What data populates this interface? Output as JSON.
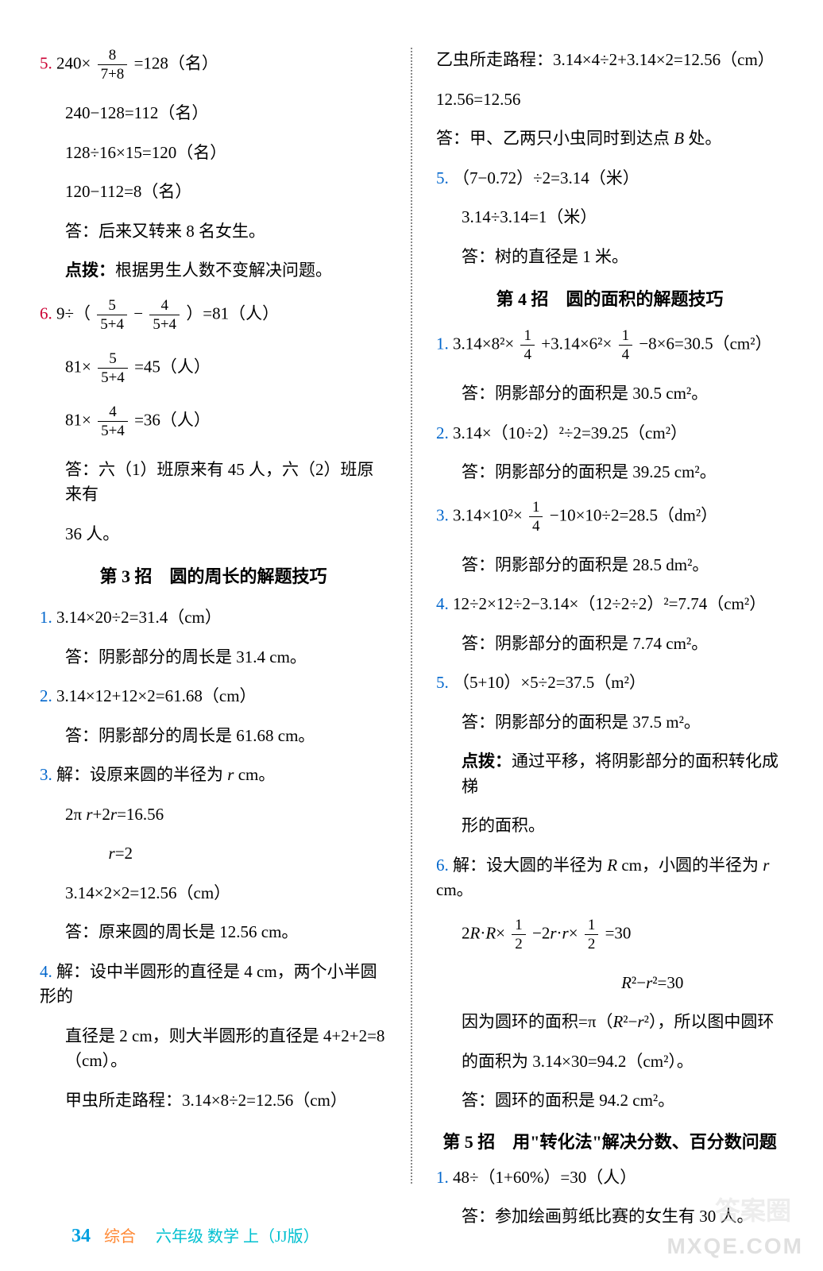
{
  "left": {
    "p5": {
      "num": "5.",
      "eq1_a": "240×",
      "eq1_frac_n": "8",
      "eq1_frac_d": "7+8",
      "eq1_b": "=128（名）",
      "eq2": "240−128=112（名）",
      "eq3": "128÷16×15=120（名）",
      "eq4": "120−112=8（名）",
      "ans": "答：后来又转来 8 名女生。",
      "hint_label": "点拨：",
      "hint": "根据男生人数不变解决问题。"
    },
    "p6": {
      "num": "6.",
      "eq1_a": "9÷（",
      "f1n": "5",
      "f1d": "5+4",
      "mid": " − ",
      "f2n": "4",
      "f2d": "5+4",
      "eq1_b": "）=81（人）",
      "eq2_a": "81×",
      "f3n": "5",
      "f3d": "5+4",
      "eq2_b": "=45（人）",
      "eq3_a": "81×",
      "f4n": "4",
      "f4d": "5+4",
      "eq3_b": "=36（人）",
      "ans1": "答：六（1）班原来有 45 人，六（2）班原来有",
      "ans2": "36 人。"
    },
    "section3_title": "第 3 招　圆的周长的解题技巧",
    "s3": {
      "p1n": "1.",
      "p1eq": "3.14×20÷2=31.4（cm）",
      "p1ans": "答：阴影部分的周长是 31.4 cm。",
      "p2n": "2.",
      "p2eq": "3.14×12+12×2=61.68（cm）",
      "p2ans": "答：阴影部分的周长是 61.68 cm。",
      "p3n": "3.",
      "p3l1": "解：设原来圆的半径为",
      "p3l1b": " cm。",
      "p3l2": "2π",
      "p3l2b": "+2",
      "p3l2c": "=16.56",
      "p3l3a": "r",
      "p3l3": "=2",
      "p3l4": "3.14×2×2=12.56（cm）",
      "p3ans": "答：原来圆的周长是 12.56 cm。",
      "p4n": "4.",
      "p4l1": "解：设中半圆形的直径是 4 cm，两个小半圆形的",
      "p4l2": "直径是 2 cm，则大半圆形的直径是 4+2+2=8（cm）。",
      "p4l3": "甲虫所走路程：3.14×8÷2=12.56（cm）"
    }
  },
  "right": {
    "cont": {
      "l1": "乙虫所走路程：3.14×4÷2+3.14×2=12.56（cm）",
      "l2": "12.56=12.56",
      "ans": "答：甲、乙两只小虫同时到达点",
      "ansB": "B",
      "ansC": " 处。"
    },
    "p5": {
      "num": "5.",
      "eq1": "（7−0.72）÷2=3.14（米）",
      "eq2": "3.14÷3.14=1（米）",
      "ans": "答：树的直径是 1 米。"
    },
    "section4_title": "第 4 招　圆的面积的解题技巧",
    "s4": {
      "p1n": "1.",
      "p1a": "3.14×8²×",
      "p1f1n": "1",
      "p1f1d": "4",
      "p1b": "+3.14×6²×",
      "p1f2n": "1",
      "p1f2d": "4",
      "p1c": "−8×6=30.5（cm²）",
      "p1ans": "答：阴影部分的面积是 30.5 cm²。",
      "p2n": "2.",
      "p2eq": "3.14×（10÷2）²÷2=39.25（cm²）",
      "p2ans": "答：阴影部分的面积是 39.25 cm²。",
      "p3n": "3.",
      "p3a": "3.14×10²×",
      "p3f1n": "1",
      "p3f1d": "4",
      "p3b": "−10×10÷2=28.5（dm²）",
      "p3ans": "答：阴影部分的面积是 28.5 dm²。",
      "p4n": "4.",
      "p4eq": "12÷2×12÷2−3.14×（12÷2÷2）²=7.74（cm²）",
      "p4ans": "答：阴影部分的面积是 7.74 cm²。",
      "p5n": "5.",
      "p5eq": "（5+10）×5÷2=37.5（m²）",
      "p5ans": "答：阴影部分的面积是 37.5 m²。",
      "p5hint_label": "点拨：",
      "p5hint1": "通过平移，将阴影部分的面积转化成梯",
      "p5hint2": "形的面积。",
      "p6n": "6.",
      "p6l1a": "解：设大圆的半径为",
      "p6l1b": " cm，小圆的半径为",
      "p6l1c": " cm。",
      "p6l2a": "2",
      "p6l2b": "·",
      "p6l2c": "×",
      "p6f1n": "1",
      "p6f1d": "2",
      "p6l2d": "−2",
      "p6l2e": "·",
      "p6l2f": "×",
      "p6f2n": "1",
      "p6f2d": "2",
      "p6l2g": "=30",
      "p6l3a": "R",
      "p6l3b": "²−",
      "p6l3c": "r",
      "p6l3d": "²=30",
      "p6l4a": "因为圆环的面积=π（",
      "p6l4b": "²−",
      "p6l4c": "²），所以图中圆环",
      "p6l5": "的面积为 3.14×30=94.2（cm²）。",
      "p6ans": "答：圆环的面积是 94.2 cm²。"
    },
    "section5_title": "第 5 招　用\"转化法\"解决分数、百分数问题",
    "s5": {
      "p1n": "1.",
      "p1eq": "48÷（1+60%）=30（人）",
      "p1ans": "答：参加绘画剪纸比赛的女生有 30 人。"
    }
  },
  "footer": {
    "page": "34",
    "text": "　六年级 数学 上（JJ版）"
  },
  "watermark_cn": "答案圈",
  "watermark": "MXQE.COM"
}
